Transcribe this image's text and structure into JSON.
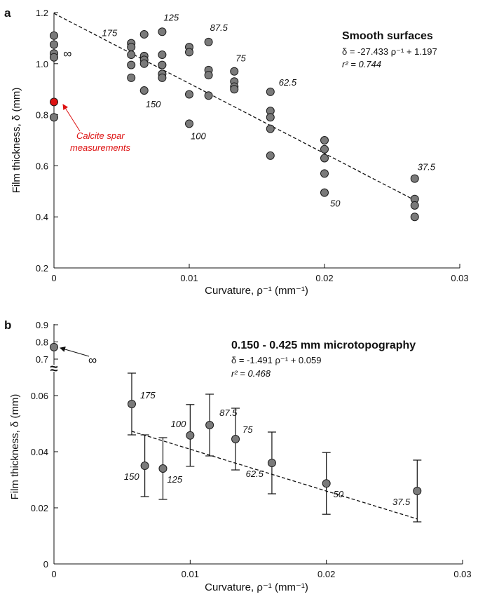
{
  "panels": [
    {
      "id": "a",
      "label": "a"
    },
    {
      "id": "b",
      "label": "b"
    }
  ],
  "colors": {
    "marker_fill": "#7a7a7a",
    "marker_stroke": "#1a1a1a",
    "highlight_fill": "#dd1111",
    "highlight_text": "#dd1111",
    "text": "#111111",
    "fit_line": "#111111"
  },
  "chart_data": [
    {
      "panel": "a",
      "type": "scatter",
      "title": "Smooth surfaces",
      "equation": "δ = -27.433 ρ⁻¹ + 1.197",
      "r2_text": "r² = 0.744",
      "xlabel": "Curvature, ρ⁻¹ (mm⁻¹)",
      "ylabel": "Film thickness, δ (mm)",
      "xlim": [
        0,
        0.03
      ],
      "ylim": [
        0.2,
        1.2
      ],
      "x_ticks": [
        0,
        0.01,
        0.02,
        0.03
      ],
      "x_tick_labels": [
        "0",
        "0.01",
        "0.02",
        "0.03"
      ],
      "y_ticks": [
        0.2,
        0.4,
        0.6,
        0.8,
        1.0,
        1.2
      ],
      "y_tick_labels": [
        "0.2",
        "0.4",
        "0.6",
        "0.8",
        "1.0",
        "1.2"
      ],
      "fit": {
        "slope": -27.433,
        "intercept": 1.197,
        "x_range": [
          0,
          0.0267
        ]
      },
      "points": [
        {
          "x": 0,
          "y": 1.11
        },
        {
          "x": 0,
          "y": 1.075
        },
        {
          "x": 0,
          "y": 1.04
        },
        {
          "x": 0,
          "y": 1.025
        },
        {
          "x": 0,
          "y": 0.79
        },
        {
          "x": 0.00571,
          "y": 1.08
        },
        {
          "x": 0.00571,
          "y": 1.065
        },
        {
          "x": 0.00571,
          "y": 1.035
        },
        {
          "x": 0.00571,
          "y": 0.995
        },
        {
          "x": 0.00571,
          "y": 0.945
        },
        {
          "x": 0.00667,
          "y": 1.115
        },
        {
          "x": 0.00667,
          "y": 1.03
        },
        {
          "x": 0.00667,
          "y": 1.015
        },
        {
          "x": 0.00667,
          "y": 1.0
        },
        {
          "x": 0.00667,
          "y": 0.895
        },
        {
          "x": 0.008,
          "y": 1.125
        },
        {
          "x": 0.008,
          "y": 1.035
        },
        {
          "x": 0.008,
          "y": 0.995
        },
        {
          "x": 0.008,
          "y": 0.96
        },
        {
          "x": 0.008,
          "y": 0.945
        },
        {
          "x": 0.01,
          "y": 1.065
        },
        {
          "x": 0.01,
          "y": 1.045
        },
        {
          "x": 0.01,
          "y": 0.88
        },
        {
          "x": 0.01,
          "y": 0.765
        },
        {
          "x": 0.01143,
          "y": 1.085
        },
        {
          "x": 0.01143,
          "y": 0.975
        },
        {
          "x": 0.01143,
          "y": 0.955
        },
        {
          "x": 0.01143,
          "y": 0.875
        },
        {
          "x": 0.01333,
          "y": 0.97
        },
        {
          "x": 0.01333,
          "y": 0.93
        },
        {
          "x": 0.01333,
          "y": 0.91
        },
        {
          "x": 0.01333,
          "y": 0.9
        },
        {
          "x": 0.016,
          "y": 0.89
        },
        {
          "x": 0.016,
          "y": 0.815
        },
        {
          "x": 0.016,
          "y": 0.79
        },
        {
          "x": 0.016,
          "y": 0.745
        },
        {
          "x": 0.016,
          "y": 0.64
        },
        {
          "x": 0.02,
          "y": 0.7
        },
        {
          "x": 0.02,
          "y": 0.665
        },
        {
          "x": 0.02,
          "y": 0.63
        },
        {
          "x": 0.02,
          "y": 0.57
        },
        {
          "x": 0.02,
          "y": 0.495
        },
        {
          "x": 0.02667,
          "y": 0.55
        },
        {
          "x": 0.02667,
          "y": 0.47
        },
        {
          "x": 0.02667,
          "y": 0.445
        },
        {
          "x": 0.02667,
          "y": 0.4
        }
      ],
      "highlight_point": {
        "x": 0,
        "y": 0.85
      },
      "highlight_note_lines": [
        "Calcite spar",
        "measurements"
      ],
      "point_labels": [
        {
          "text": "175",
          "x": 0.00571,
          "y": 1.08
        },
        {
          "text": "125",
          "x": 0.008,
          "y": 1.125
        },
        {
          "text": "87.5",
          "x": 0.01143,
          "y": 1.085
        },
        {
          "text": "75",
          "x": 0.01333,
          "y": 0.97
        },
        {
          "text": "62.5",
          "x": 0.016,
          "y": 0.89
        },
        {
          "text": "150",
          "x": 0.00667,
          "y": 0.895
        },
        {
          "text": "100",
          "x": 0.01,
          "y": 0.765
        },
        {
          "text": "50",
          "x": 0.02,
          "y": 0.495
        },
        {
          "text": "37.5",
          "x": 0.02667,
          "y": 0.55
        },
        {
          "text": "∞",
          "x": 0.001,
          "y": 1.04
        }
      ]
    },
    {
      "panel": "b",
      "type": "scatter",
      "title": "0.150 - 0.425 mm microtopography",
      "equation": "δ = -1.491 ρ⁻¹ + 0.059",
      "r2_text": "r² = 0.468",
      "xlabel": "Curvature, ρ⁻¹ (mm⁻¹)",
      "ylabel": "Film thickness, δ (mm)",
      "xlim": [
        0,
        0.03
      ],
      "ylim": [
        0,
        0.07
      ],
      "x_ticks": [
        0,
        0.01,
        0.02,
        0.03
      ],
      "x_tick_labels": [
        "0",
        "0.01",
        "0.02",
        "0.03"
      ],
      "y_ticks": [
        0,
        0.02,
        0.04,
        0.06
      ],
      "y_tick_labels": [
        "0",
        "0.02",
        "0.04",
        "0.06"
      ],
      "upper_axis": {
        "ylim": [
          0.7,
          0.9
        ],
        "ticks": [
          0.7,
          0.8,
          0.9
        ],
        "tick_labels": [
          "0.7",
          "0.8",
          "0.9"
        ]
      },
      "axis_break_symbol": "≈",
      "fit": {
        "slope": -1.491,
        "intercept": 0.059,
        "x_range": [
          0.00571,
          0.02667
        ]
      },
      "points": [
        {
          "label": "175",
          "x": 0.00571,
          "y": 0.057,
          "err": 0.011
        },
        {
          "label": "150",
          "x": 0.00667,
          "y": 0.035,
          "err": 0.011
        },
        {
          "label": "125",
          "x": 0.008,
          "y": 0.034,
          "err": 0.011
        },
        {
          "label": "100",
          "x": 0.01,
          "y": 0.0458,
          "err": 0.011
        },
        {
          "label": "87.5",
          "x": 0.01143,
          "y": 0.0495,
          "err": 0.011
        },
        {
          "label": "75",
          "x": 0.01333,
          "y": 0.0445,
          "err": 0.011
        },
        {
          "label": "62.5",
          "x": 0.016,
          "y": 0.036,
          "err": 0.011
        },
        {
          "label": "50",
          "x": 0.02,
          "y": 0.0287,
          "err": 0.011
        },
        {
          "label": "37.5",
          "x": 0.02667,
          "y": 0.026,
          "err": 0.011
        }
      ],
      "infinity_point": {
        "label": "∞",
        "x": 0,
        "y": 0.77
      }
    }
  ]
}
